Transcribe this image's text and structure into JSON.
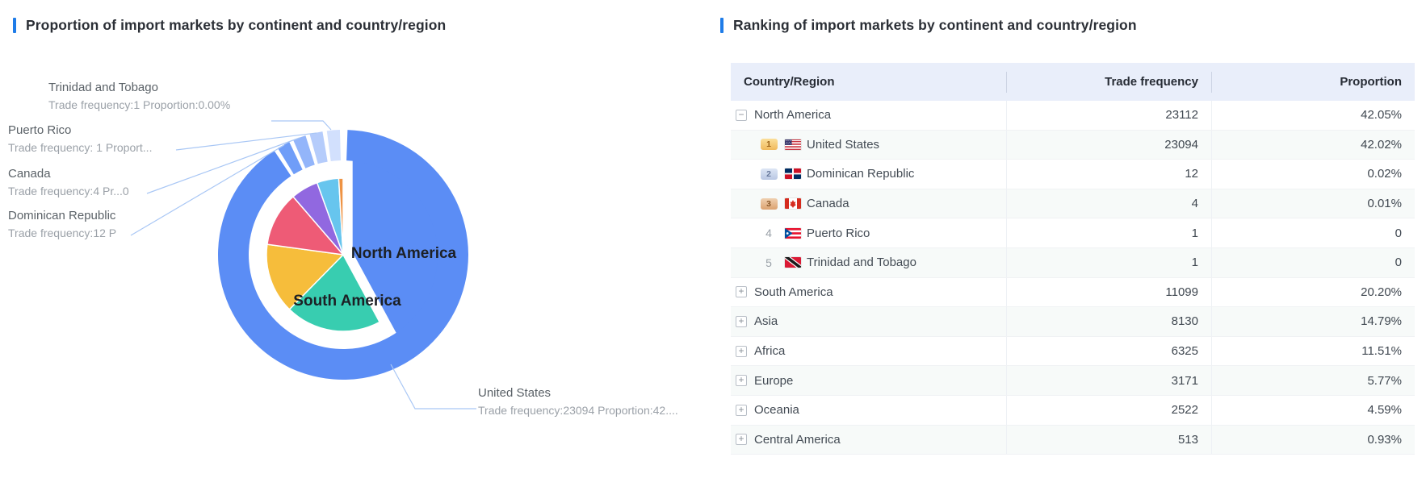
{
  "chart_data": {
    "type": "pie",
    "title": "Proportion of import markets by continent and country/region",
    "legend_position": "none",
    "inside_labels": [
      "North America",
      "South America"
    ],
    "rings": [
      {
        "name": "continents",
        "role": "inner",
        "selected": "North America",
        "categories": [
          "North America",
          "South America",
          "Asia",
          "Africa",
          "Europe",
          "Oceania",
          "Central America"
        ],
        "trade_frequency": [
          23112,
          11099,
          8130,
          6325,
          3171,
          2522,
          513
        ],
        "proportion_pct": [
          42.05,
          20.2,
          14.79,
          11.51,
          5.77,
          4.59,
          0.93
        ],
        "colors": [
          "#5b8df5",
          "#38cdb0",
          "#f6bd3b",
          "#ee5b76",
          "#9168e0",
          "#67c5ee",
          "#ee9344"
        ]
      },
      {
        "name": "north-america-countries",
        "role": "outer",
        "categories": [
          "United States",
          "Dominican Republic",
          "Canada",
          "Puerto Rico",
          "Trinidad and Tobago"
        ],
        "trade_frequency": [
          23094,
          12,
          4,
          1,
          1
        ],
        "proportion_pct": [
          42.02,
          0.02,
          0.01,
          0,
          0
        ],
        "colors": [
          "#5b8df5",
          "#6f9df8",
          "#93b5fa",
          "#b5ccfb",
          "#d2e0fd"
        ]
      }
    ]
  },
  "left_panel": {
    "title": "Proportion of import markets by continent and country/region",
    "callouts": [
      {
        "id": "tt",
        "name": "Trinidad and Tobago",
        "value": "Trade frequency:1 Proportion:0.00%"
      },
      {
        "id": "pr",
        "name": "Puerto Rico",
        "value": "Trade frequency: 1 Proport..."
      },
      {
        "id": "ca",
        "name": "Canada",
        "value": "Trade frequency:4 Pr...0"
      },
      {
        "id": "dr",
        "name": "Dominican Republic",
        "value": "Trade frequency:12 P"
      },
      {
        "id": "us",
        "name": "United States",
        "value": "Trade frequency:23094 Proportion:42...."
      }
    ]
  },
  "right_panel": {
    "title": "Ranking of import markets by continent and country/region",
    "table": {
      "columns": [
        "Country/Region",
        "Trade frequency",
        "Proportion"
      ],
      "rows": [
        {
          "type": "continent",
          "expand": "collapse",
          "name": "North America",
          "freq": "23112",
          "prop": "42.05%"
        },
        {
          "type": "country",
          "rank": 1,
          "flag": "us",
          "name": "United States",
          "freq": "23094",
          "prop": "42.02%"
        },
        {
          "type": "country",
          "rank": 2,
          "flag": "do",
          "name": "Dominican Republic",
          "freq": "12",
          "prop": "0.02%"
        },
        {
          "type": "country",
          "rank": 3,
          "flag": "ca",
          "name": "Canada",
          "freq": "4",
          "prop": "0.01%"
        },
        {
          "type": "country",
          "rank": 4,
          "flag": "pr",
          "name": "Puerto Rico",
          "freq": "1",
          "prop": "0"
        },
        {
          "type": "country",
          "rank": 5,
          "flag": "tt",
          "name": "Trinidad and Tobago",
          "freq": "1",
          "prop": "0"
        },
        {
          "type": "continent",
          "expand": "expand",
          "name": "South America",
          "freq": "11099",
          "prop": "20.20%"
        },
        {
          "type": "continent",
          "expand": "expand",
          "name": "Asia",
          "freq": "8130",
          "prop": "14.79%"
        },
        {
          "type": "continent",
          "expand": "expand",
          "name": "Africa",
          "freq": "6325",
          "prop": "11.51%"
        },
        {
          "type": "continent",
          "expand": "expand",
          "name": "Europe",
          "freq": "3171",
          "prop": "5.77%"
        },
        {
          "type": "continent",
          "expand": "expand",
          "name": "Oceania",
          "freq": "2522",
          "prop": "4.59%"
        },
        {
          "type": "continent",
          "expand": "expand",
          "name": "Central America",
          "freq": "513",
          "prop": "0.93%"
        }
      ]
    }
  },
  "colors": {
    "accent": "#1f7ce8",
    "header_bg": "#e9eefa",
    "stripe": "#f7faf9",
    "ring_blue": "#5b8df5"
  }
}
